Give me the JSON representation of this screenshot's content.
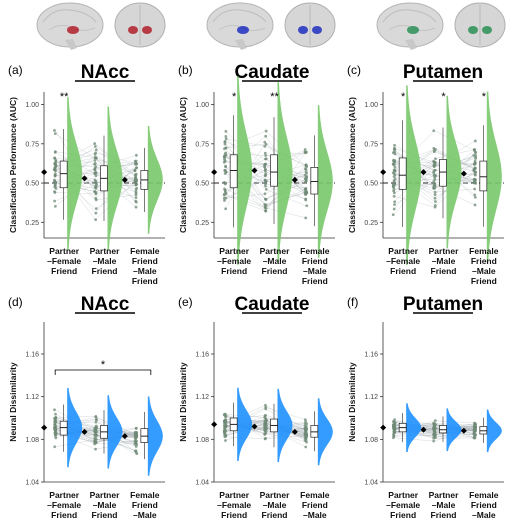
{
  "colors": {
    "violin_top": "#78c86a",
    "violin_bottom": "#1e90ff",
    "dots": "#6f8a76",
    "lines": "#9aa3a8",
    "chance_line": "#222222",
    "brain_nacc": "#b0202a",
    "brain_caudate": "#1e2fbf",
    "brain_putamen": "#2a8f55"
  },
  "icons": [
    "brain-sagittal-icon",
    "brain-coronal-icon"
  ],
  "chart_data": [
    {
      "type": "violin",
      "panel": "(a)",
      "title": "NAcc",
      "ylabel": "Classification Performance (AUC)",
      "yticks": [
        "0.25",
        "0.50",
        "0.75",
        "1.00"
      ],
      "ylim": [
        0.15,
        1.08
      ],
      "chance_line": 0.5,
      "categories": [
        "Partner\n–Female\nFriend",
        "Partner\n–Male\nFriend",
        "Female\nFriend\n–Male\nFriend"
      ],
      "means": [
        0.57,
        0.53,
        0.52
      ],
      "medians": [
        0.56,
        0.53,
        0.52
      ],
      "q1": [
        0.47,
        0.45,
        0.46
      ],
      "q3": [
        0.64,
        0.61,
        0.58
      ],
      "significance": [
        "**",
        "",
        ""
      ],
      "color": "#78c86a"
    },
    {
      "type": "violin",
      "panel": "(b)",
      "title": "Caudate",
      "ylabel": "Classification Performance (AUC)",
      "yticks": [
        "0.25",
        "0.50",
        "0.75",
        "1.00"
      ],
      "ylim": [
        0.15,
        1.08
      ],
      "chance_line": 0.5,
      "categories": [
        "Partner\n–Female\nFriend",
        "Partner\n–Male\nFriend",
        "Female\nFriend\n–Male\nFriend"
      ],
      "means": [
        0.57,
        0.58,
        0.52
      ],
      "medians": [
        0.58,
        0.57,
        0.51
      ],
      "q1": [
        0.47,
        0.48,
        0.43
      ],
      "q3": [
        0.68,
        0.68,
        0.6
      ],
      "significance": [
        "*",
        "**",
        ""
      ],
      "color": "#78c86a"
    },
    {
      "type": "violin",
      "panel": "(c)",
      "title": "Putamen",
      "ylabel": "Classification Performance (AUC)",
      "yticks": [
        "0.25",
        "0.50",
        "0.75",
        "1.00"
      ],
      "ylim": [
        0.15,
        1.08
      ],
      "chance_line": 0.5,
      "categories": [
        "Partner\n–Female\nFriend",
        "Partner\n–Male\nFriend",
        "Female\nFriend\n–Male\nFriend"
      ],
      "means": [
        0.57,
        0.57,
        0.56
      ],
      "medians": [
        0.55,
        0.57,
        0.54
      ],
      "q1": [
        0.46,
        0.48,
        0.45
      ],
      "q3": [
        0.66,
        0.65,
        0.64
      ],
      "significance": [
        "*",
        "*",
        "*"
      ],
      "color": "#78c86a"
    },
    {
      "type": "violin",
      "panel": "(d)",
      "title": "NAcc",
      "ylabel": "Neural Dissimilarity",
      "yticks": [
        "1.04",
        "1.08",
        "1.12",
        "1.16"
      ],
      "ylim": [
        1.04,
        1.19
      ],
      "categories": [
        "Partner\n–Female\nFriend",
        "Partner\n–Male\nFriend",
        "Female\nFriend\n–Male\nFriend"
      ],
      "means": [
        1.091,
        1.087,
        1.083
      ],
      "medians": [
        1.091,
        1.087,
        1.083
      ],
      "q1": [
        1.084,
        1.081,
        1.077
      ],
      "q3": [
        1.097,
        1.093,
        1.09
      ],
      "bracket": {
        "from": 0,
        "to": 2,
        "label": "*"
      },
      "color": "#1e90ff"
    },
    {
      "type": "violin",
      "panel": "(e)",
      "title": "Caudate",
      "ylabel": "Neural Dissimilarity",
      "yticks": [
        "1.04",
        "1.08",
        "1.12",
        "1.16"
      ],
      "ylim": [
        1.04,
        1.19
      ],
      "categories": [
        "Partner\n–Female\nFriend",
        "Partner\n–Male\nFriend",
        "Female\nFriend\n–Male\nFriend"
      ],
      "means": [
        1.094,
        1.092,
        1.087
      ],
      "medians": [
        1.094,
        1.093,
        1.087
      ],
      "q1": [
        1.088,
        1.087,
        1.082
      ],
      "q3": [
        1.1,
        1.099,
        1.093
      ],
      "color": "#1e90ff"
    },
    {
      "type": "violin",
      "panel": "(f)",
      "title": "Putamen",
      "ylabel": "Neural Dissimilarity",
      "yticks": [
        "1.04",
        "1.08",
        "1.12",
        "1.16"
      ],
      "ylim": [
        1.04,
        1.19
      ],
      "categories": [
        "Partner\n–Female\nFriend",
        "Partner\n–Male\nFriend",
        "Female\nFriend\n–Male\nFriend"
      ],
      "means": [
        1.091,
        1.089,
        1.088
      ],
      "medians": [
        1.091,
        1.089,
        1.088
      ],
      "q1": [
        1.087,
        1.086,
        1.085
      ],
      "q3": [
        1.095,
        1.093,
        1.092
      ],
      "color": "#1e90ff"
    }
  ]
}
